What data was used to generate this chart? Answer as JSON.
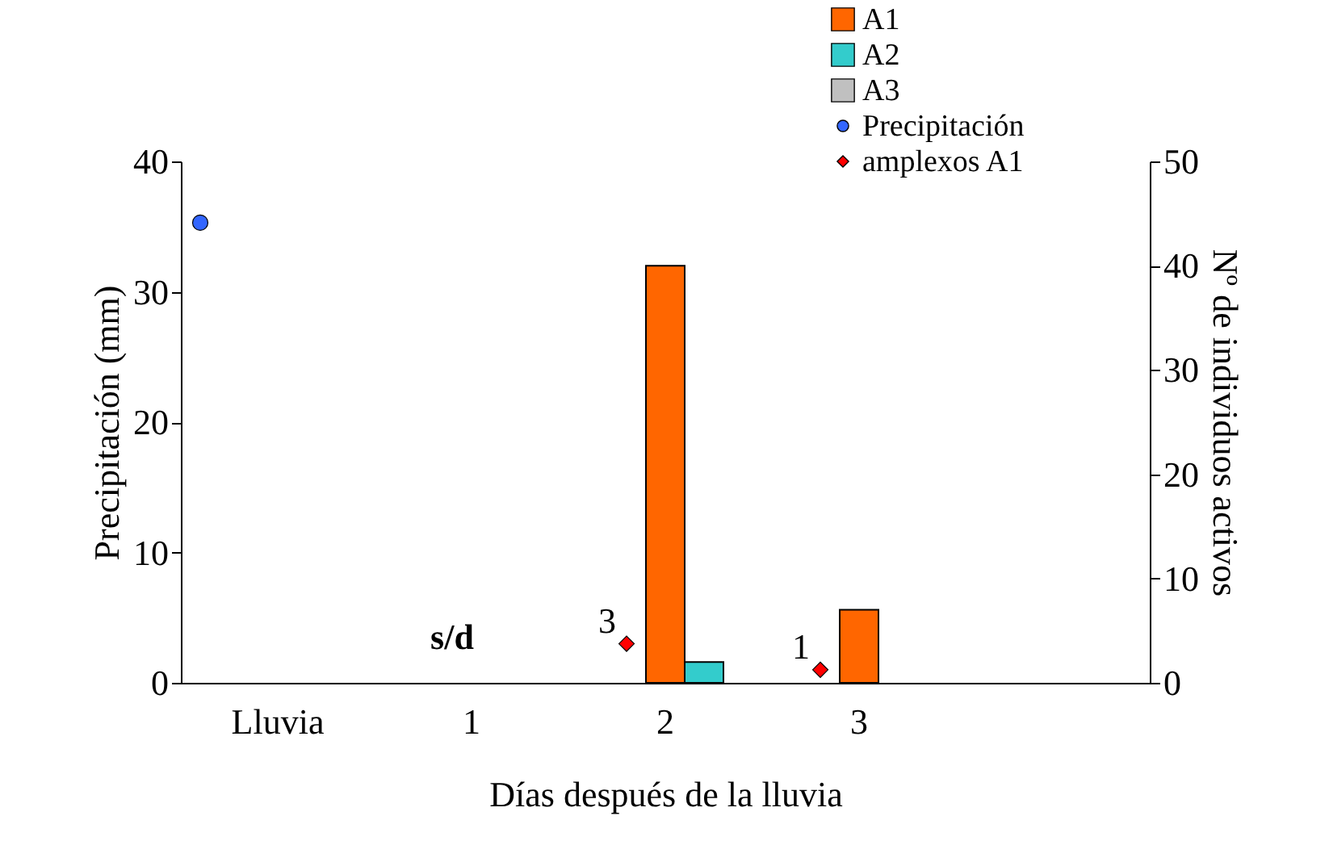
{
  "chart_data": {
    "type": "bar",
    "xlabel": "Días después de la lluvia",
    "ylabel": "Precipitación (mm)",
    "y2label": "Nº de individuos activos",
    "categories": [
      "Lluvia",
      "1",
      "2",
      "3",
      null
    ],
    "series": [
      {
        "name": "A1",
        "axis": "y2",
        "color": "#ff6600",
        "values": [
          null,
          null,
          40,
          7,
          null
        ]
      },
      {
        "name": "A2",
        "axis": "y2",
        "color": "#33cccc",
        "values": [
          null,
          null,
          2,
          null,
          null
        ]
      },
      {
        "name": "A3",
        "axis": "y2",
        "color": "#c0c0c0",
        "values": [
          null,
          null,
          null,
          null,
          null
        ]
      },
      {
        "name": "Precipitación",
        "type": "scatter",
        "axis": "y",
        "marker": "circle",
        "color": "#3366ff",
        "values": [
          35.3,
          null,
          null,
          null,
          null
        ]
      },
      {
        "name": "amplexos A1",
        "type": "scatter",
        "axis": "y",
        "marker": "diamond",
        "color": "#ff0000",
        "values": [
          null,
          null,
          3,
          1,
          null
        ],
        "value_labels": [
          null,
          null,
          "3",
          "1",
          null
        ]
      }
    ],
    "ylim": [
      0,
      40
    ],
    "yticks": [
      0,
      10,
      20,
      30,
      40
    ],
    "y2lim": [
      0,
      50
    ],
    "y2ticks": [
      0,
      10,
      20,
      30,
      40,
      50
    ],
    "annotations": [
      "s/d"
    ],
    "legend": "top right",
    "grid": false
  }
}
